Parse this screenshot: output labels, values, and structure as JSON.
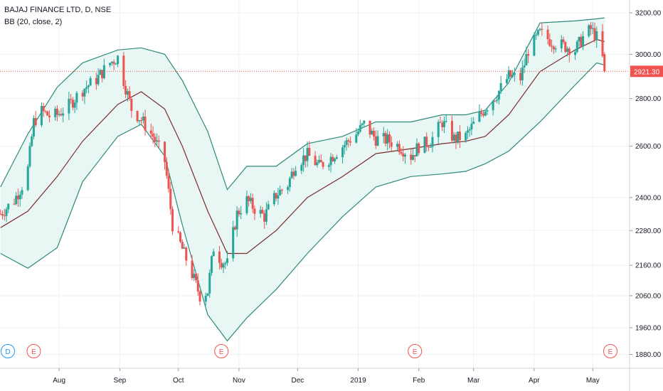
{
  "symbol_title": "BAJAJ FINANCE LTD, D, NSE",
  "indicator_title": "BB (20, close, 2)",
  "colors": {
    "up": "#26a69a",
    "down": "#ef5350",
    "basis": "#7b2d2d",
    "band": "#2e8b7a",
    "band_fill": "#e8f6f4",
    "last_price_line": "#ef5350",
    "grid": "#eef0f3"
  },
  "chart_data": {
    "type": "candlestick",
    "title": "BAJAJ FINANCE LTD, D, NSE",
    "indicator": "Bollinger Bands (20, close, 2)",
    "y_axis": {
      "scale": "log",
      "range": [
        1840,
        3250
      ],
      "tick_labels": [
        "3200.00",
        "3000.00",
        "2800.00",
        "2600.00",
        "2400.00",
        "2280.00",
        "2160.00",
        "2060.00",
        "1960.00",
        "1880.00"
      ],
      "tick_values": [
        3200,
        3000,
        2800,
        2600,
        2400,
        2280,
        2160,
        2060,
        1960,
        1880
      ]
    },
    "x_axis": {
      "range": [
        "2018-07-01",
        "2019-05-10"
      ],
      "tick_labels": [
        "Aug",
        "Sep",
        "Oct",
        "Nov",
        "Dec",
        "2019",
        "Feb",
        "Mar",
        "Apr",
        "May"
      ],
      "tick_dates": [
        "2018-08-01",
        "2018-09-01",
        "2018-10-01",
        "2018-11-01",
        "2018-12-01",
        "2019-01-01",
        "2019-02-01",
        "2019-03-01",
        "2019-04-01",
        "2019-05-01"
      ]
    },
    "last_price": {
      "value": 2921.3,
      "label": "2921.30"
    },
    "close_series": [
      [
        "2018-07-02",
        2340
      ],
      [
        "2018-07-09",
        2390
      ],
      [
        "2018-07-13",
        2445
      ],
      [
        "2018-07-16",
        2510
      ],
      [
        "2018-07-19",
        2700
      ],
      [
        "2018-07-23",
        2745
      ],
      [
        "2018-07-27",
        2725
      ],
      [
        "2018-07-31",
        2730
      ],
      [
        "2018-08-06",
        2770
      ],
      [
        "2018-08-13",
        2840
      ],
      [
        "2018-08-20",
        2885
      ],
      [
        "2018-08-27",
        2960
      ],
      [
        "2018-08-31",
        2985
      ],
      [
        "2018-09-03",
        2880
      ],
      [
        "2018-09-07",
        2755
      ],
      [
        "2018-09-12",
        2710
      ],
      [
        "2018-09-18",
        2640
      ],
      [
        "2018-09-24",
        2540
      ],
      [
        "2018-09-28",
        2300
      ],
      [
        "2018-10-03",
        2215
      ],
      [
        "2018-10-08",
        2130
      ],
      [
        "2018-10-12",
        2060
      ],
      [
        "2018-10-16",
        2075
      ],
      [
        "2018-10-19",
        2220
      ],
      [
        "2018-10-23",
        2175
      ],
      [
        "2018-10-26",
        2165
      ],
      [
        "2018-10-31",
        2340
      ],
      [
        "2018-11-05",
        2390
      ],
      [
        "2018-11-09",
        2360
      ],
      [
        "2018-11-14",
        2330
      ],
      [
        "2018-11-20",
        2410
      ],
      [
        "2018-11-26",
        2450
      ],
      [
        "2018-11-30",
        2530
      ],
      [
        "2018-12-06",
        2565
      ],
      [
        "2018-12-12",
        2520
      ],
      [
        "2018-12-18",
        2555
      ],
      [
        "2018-12-24",
        2600
      ],
      [
        "2018-12-31",
        2650
      ],
      [
        "2019-01-04",
        2690
      ],
      [
        "2019-01-10",
        2630
      ],
      [
        "2019-01-16",
        2625
      ],
      [
        "2019-01-22",
        2600
      ],
      [
        "2019-01-28",
        2560
      ],
      [
        "2019-02-01",
        2600
      ],
      [
        "2019-02-07",
        2620
      ],
      [
        "2019-02-13",
        2700
      ],
      [
        "2019-02-19",
        2630
      ],
      [
        "2019-02-25",
        2640
      ],
      [
        "2019-03-01",
        2690
      ],
      [
        "2019-03-07",
        2760
      ],
      [
        "2019-03-13",
        2820
      ],
      [
        "2019-03-19",
        2900
      ],
      [
        "2019-03-25",
        2890
      ],
      [
        "2019-03-29",
        3020
      ],
      [
        "2019-04-04",
        3100
      ],
      [
        "2019-04-10",
        3060
      ],
      [
        "2019-04-16",
        3040
      ],
      [
        "2019-04-22",
        3020
      ],
      [
        "2019-04-26",
        3080
      ],
      [
        "2019-04-30",
        3120
      ],
      [
        "2019-05-03",
        3080
      ],
      [
        "2019-05-06",
        2980
      ],
      [
        "2019-05-07",
        2921.3
      ]
    ],
    "basis_series": [
      [
        "2018-07-02",
        2290
      ],
      [
        "2018-07-16",
        2350
      ],
      [
        "2018-07-31",
        2480
      ],
      [
        "2018-08-13",
        2620
      ],
      [
        "2018-08-31",
        2775
      ],
      [
        "2018-09-12",
        2830
      ],
      [
        "2018-09-24",
        2755
      ],
      [
        "2018-10-03",
        2600
      ],
      [
        "2018-10-16",
        2350
      ],
      [
        "2018-10-26",
        2200
      ],
      [
        "2018-11-05",
        2200
      ],
      [
        "2018-11-20",
        2280
      ],
      [
        "2018-12-06",
        2400
      ],
      [
        "2018-12-24",
        2480
      ],
      [
        "2019-01-10",
        2570
      ],
      [
        "2019-01-28",
        2590
      ],
      [
        "2019-02-13",
        2610
      ],
      [
        "2019-02-25",
        2620
      ],
      [
        "2019-03-07",
        2640
      ],
      [
        "2019-03-19",
        2730
      ],
      [
        "2019-04-04",
        2920
      ],
      [
        "2019-04-22",
        3020
      ],
      [
        "2019-05-03",
        3070
      ],
      [
        "2019-05-07",
        3060
      ]
    ],
    "upper_band": [
      [
        "2018-07-02",
        2440
      ],
      [
        "2018-07-16",
        2650
      ],
      [
        "2018-07-31",
        2850
      ],
      [
        "2018-08-13",
        2960
      ],
      [
        "2018-08-31",
        3020
      ],
      [
        "2018-09-12",
        3030
      ],
      [
        "2018-09-24",
        3000
      ],
      [
        "2018-10-03",
        2880
      ],
      [
        "2018-10-16",
        2660
      ],
      [
        "2018-10-26",
        2430
      ],
      [
        "2018-11-05",
        2520
      ],
      [
        "2018-11-20",
        2520
      ],
      [
        "2018-12-06",
        2610
      ],
      [
        "2018-12-24",
        2640
      ],
      [
        "2019-01-10",
        2700
      ],
      [
        "2019-01-28",
        2700
      ],
      [
        "2019-02-13",
        2730
      ],
      [
        "2019-02-25",
        2730
      ],
      [
        "2019-03-07",
        2750
      ],
      [
        "2019-03-19",
        2870
      ],
      [
        "2019-04-04",
        3150
      ],
      [
        "2019-04-22",
        3160
      ],
      [
        "2019-05-03",
        3170
      ],
      [
        "2019-05-07",
        3175
      ]
    ],
    "lower_band": [
      [
        "2018-07-02",
        2200
      ],
      [
        "2018-07-16",
        2150
      ],
      [
        "2018-07-31",
        2220
      ],
      [
        "2018-08-13",
        2460
      ],
      [
        "2018-08-31",
        2640
      ],
      [
        "2018-09-12",
        2690
      ],
      [
        "2018-09-24",
        2560
      ],
      [
        "2018-10-03",
        2300
      ],
      [
        "2018-10-16",
        2000
      ],
      [
        "2018-10-26",
        1920
      ],
      [
        "2018-11-05",
        1990
      ],
      [
        "2018-11-20",
        2080
      ],
      [
        "2018-12-06",
        2200
      ],
      [
        "2018-12-24",
        2330
      ],
      [
        "2019-01-10",
        2440
      ],
      [
        "2019-01-28",
        2480
      ],
      [
        "2019-02-13",
        2490
      ],
      [
        "2019-02-25",
        2500
      ],
      [
        "2019-03-07",
        2530
      ],
      [
        "2019-03-19",
        2580
      ],
      [
        "2019-04-04",
        2700
      ],
      [
        "2019-04-22",
        2860
      ],
      [
        "2019-05-03",
        2960
      ],
      [
        "2019-05-07",
        2950
      ]
    ],
    "event_markers": [
      {
        "label": "D",
        "date": "2018-07-02",
        "kind": "dividend"
      },
      {
        "label": "E",
        "date": "2018-07-19",
        "kind": "earnings"
      },
      {
        "label": "E",
        "date": "2018-10-23",
        "kind": "earnings"
      },
      {
        "label": "E",
        "date": "2019-01-30",
        "kind": "earnings"
      },
      {
        "label": "E",
        "date": "2019-05-10",
        "kind": "earnings"
      }
    ]
  }
}
